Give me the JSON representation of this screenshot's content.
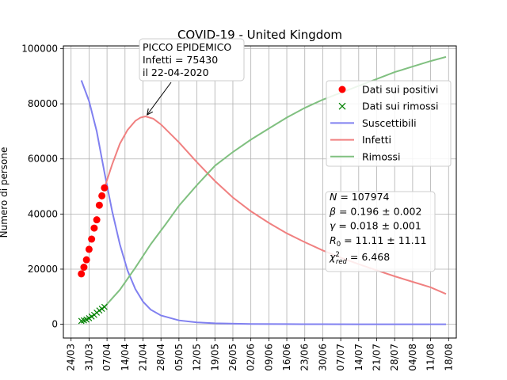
{
  "chart_data": {
    "type": "line",
    "title": "COVID-19 - United Kingdom",
    "ylabel": "Numero di persone",
    "xlabel": "",
    "xlim": [
      "2020-03-21",
      "2020-08-21"
    ],
    "ylim": [
      -5000,
      101000
    ],
    "grid": true,
    "legend_position": "right",
    "x_tick_labels": [
      "24/03",
      "31/03",
      "07/04",
      "14/04",
      "21/04",
      "28/04",
      "05/05",
      "12/05",
      "19/05",
      "26/05",
      "02/06",
      "09/06",
      "16/06",
      "23/06",
      "30/06",
      "07/07",
      "14/07",
      "21/07",
      "28/07",
      "04/08",
      "11/08",
      "18/08"
    ],
    "x_tick_dates": [
      "2020-03-24",
      "2020-03-31",
      "2020-04-07",
      "2020-04-14",
      "2020-04-21",
      "2020-04-28",
      "2020-05-05",
      "2020-05-12",
      "2020-05-19",
      "2020-05-26",
      "2020-06-02",
      "2020-06-09",
      "2020-06-16",
      "2020-06-23",
      "2020-06-30",
      "2020-07-07",
      "2020-07-14",
      "2020-07-21",
      "2020-07-28",
      "2020-08-04",
      "2020-08-11",
      "2020-08-18"
    ],
    "y_ticks": [
      0,
      20000,
      40000,
      60000,
      80000,
      100000
    ],
    "y_tick_labels": [
      "0",
      "20000",
      "40000",
      "60000",
      "80000",
      "100000"
    ],
    "series": [
      {
        "name": "Dati sui positivi",
        "kind": "markers",
        "marker": "circle",
        "color": "#ff0000",
        "x": [
          "2020-03-28",
          "2020-03-29",
          "2020-03-30",
          "2020-03-31",
          "2020-04-01",
          "2020-04-02",
          "2020-04-03",
          "2020-04-04",
          "2020-04-05",
          "2020-04-06"
        ],
        "y": [
          18300,
          20700,
          23400,
          27200,
          30900,
          34900,
          37900,
          43200,
          46600,
          49500
        ]
      },
      {
        "name": "Dati sui rimossi",
        "kind": "markers",
        "marker": "x",
        "color": "#008000",
        "x": [
          "2020-03-28",
          "2020-03-29",
          "2020-03-30",
          "2020-03-31",
          "2020-04-01",
          "2020-04-02",
          "2020-04-03",
          "2020-04-04",
          "2020-04-05",
          "2020-04-06"
        ],
        "y": [
          1200,
          1400,
          1700,
          2200,
          2800,
          3400,
          4200,
          5000,
          5600,
          6300
        ]
      },
      {
        "name": "Suscettibili",
        "kind": "line",
        "color": "#8080f0",
        "x": [
          "2020-03-28",
          "2020-03-31",
          "2020-04-03",
          "2020-04-06",
          "2020-04-09",
          "2020-04-12",
          "2020-04-15",
          "2020-04-18",
          "2020-04-21",
          "2020-04-24",
          "2020-04-28",
          "2020-05-05",
          "2020-05-12",
          "2020-05-19",
          "2020-06-02",
          "2020-06-16",
          "2020-06-30",
          "2020-07-14",
          "2020-07-28",
          "2020-08-11",
          "2020-08-17"
        ],
        "y": [
          88500,
          81000,
          70000,
          55000,
          41000,
          29000,
          19500,
          12800,
          8200,
          5300,
          3200,
          1400,
          700,
          350,
          120,
          50,
          20,
          10,
          5,
          2,
          1
        ]
      },
      {
        "name": "Infetti",
        "kind": "line",
        "color": "#f08080",
        "x": [
          "2020-04-06",
          "2020-04-09",
          "2020-04-12",
          "2020-04-15",
          "2020-04-18",
          "2020-04-20",
          "2020-04-22",
          "2020-04-25",
          "2020-04-28",
          "2020-05-05",
          "2020-05-12",
          "2020-05-19",
          "2020-05-26",
          "2020-06-02",
          "2020-06-09",
          "2020-06-16",
          "2020-06-23",
          "2020-06-30",
          "2020-07-07",
          "2020-07-14",
          "2020-07-21",
          "2020-07-28",
          "2020-08-04",
          "2020-08-11",
          "2020-08-17"
        ],
        "y": [
          49500,
          58000,
          65500,
          70500,
          73800,
          75000,
          75430,
          74600,
          72500,
          66000,
          58800,
          52000,
          46000,
          41000,
          36800,
          33000,
          29800,
          26800,
          24200,
          21800,
          19600,
          17400,
          15400,
          13400,
          11000
        ]
      },
      {
        "name": "Rimossi",
        "kind": "line",
        "color": "#80c080",
        "x": [
          "2020-04-06",
          "2020-04-12",
          "2020-04-18",
          "2020-04-24",
          "2020-04-30",
          "2020-05-05",
          "2020-05-12",
          "2020-05-19",
          "2020-05-26",
          "2020-06-02",
          "2020-06-09",
          "2020-06-16",
          "2020-06-23",
          "2020-06-30",
          "2020-07-07",
          "2020-07-14",
          "2020-07-21",
          "2020-07-28",
          "2020-08-04",
          "2020-08-11",
          "2020-08-17"
        ],
        "y": [
          6300,
          12500,
          20500,
          29000,
          36500,
          43000,
          50500,
          57500,
          62500,
          67000,
          71000,
          75000,
          78500,
          81500,
          84000,
          86500,
          89000,
          91500,
          93500,
          95500,
          97000
        ]
      }
    ],
    "annotation": {
      "lines": [
        "PICCO EPIDEMICO",
        "Infetti = 75430",
        "il 22-04-2020"
      ],
      "point_x": "2020-04-22",
      "point_y": 75430
    },
    "stats_box": {
      "lines": [
        {
          "symbol": "N",
          "sub": "",
          "sup": "",
          "text": " = 107974"
        },
        {
          "symbol": "β",
          "sub": "",
          "sup": "",
          "text": " = 0.196 ± 0.002"
        },
        {
          "symbol": "γ",
          "sub": "",
          "sup": "",
          "text": " = 0.018 ± 0.001"
        },
        {
          "symbol": "R",
          "sub": "0",
          "sup": "",
          "text": " = 11.11 ± 11.11"
        },
        {
          "symbol": "χ",
          "sub": "red",
          "sup": "2",
          "text": " = 6.468"
        }
      ]
    }
  }
}
